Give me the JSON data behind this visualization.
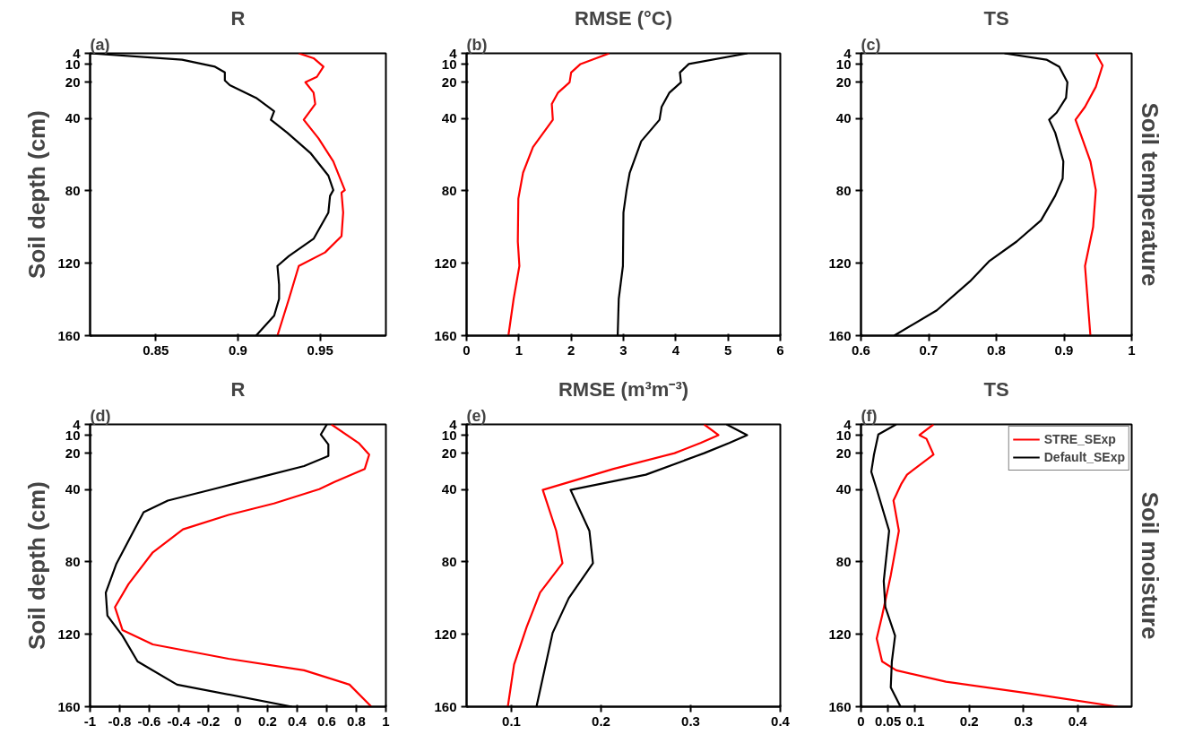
{
  "chart_data": [
    {
      "type": "line",
      "title": "R",
      "annotations": [
        "(a)"
      ],
      "ylabel": "Soil depth (cm)",
      "xlim": [
        0.81,
        0.99
      ],
      "xticks": [
        0.85,
        0.9,
        0.95
      ],
      "ylim": [
        160,
        4
      ],
      "yticks": [
        4,
        10,
        20,
        40,
        80,
        120,
        160
      ],
      "series": [
        {
          "color": "#ff0000",
          "x": [
            0.937,
            0.946,
            0.952,
            0.948,
            0.941,
            0.946,
            0.947,
            0.94,
            0.949,
            0.958,
            0.965,
            0.963,
            0.964,
            0.963,
            0.953,
            0.937,
            0.931,
            0.924
          ],
          "values": [
            4,
            6.7,
            11.4,
            17,
            20,
            25.7,
            32,
            40.7,
            51,
            63.7,
            79.6,
            81,
            92,
            105,
            114,
            121.5,
            139.7,
            160
          ]
        },
        {
          "color": "#000000",
          "x": [
            0.81,
            0.866,
            0.886,
            0.892,
            0.892,
            0.895,
            0.911,
            0.922,
            0.92,
            0.93,
            0.944,
            0.955,
            0.958,
            0.956,
            0.955,
            0.946,
            0.931,
            0.924,
            0.925,
            0.925,
            0.922,
            0.911
          ],
          "values": [
            4,
            7.5,
            11.4,
            14.5,
            19,
            21.6,
            28.6,
            36,
            40.7,
            47.9,
            59,
            71.6,
            79.6,
            82.8,
            92,
            106.5,
            116,
            121.5,
            131.8,
            139.7,
            149,
            160
          ]
        }
      ]
    },
    {
      "type": "line",
      "title": "RMSE (°C)",
      "annotations": [
        "(b)"
      ],
      "xlim": [
        0,
        6
      ],
      "xticks": [
        0,
        1,
        2,
        3,
        4,
        5,
        6
      ],
      "ylim": [
        160,
        4
      ],
      "yticks": [
        4,
        10,
        20,
        40,
        80,
        120,
        160
      ],
      "series": [
        {
          "color": "#ff0000",
          "x": [
            2.73,
            2.18,
            2.0,
            1.97,
            1.75,
            1.63,
            1.65,
            1.27,
            1.08,
            0.99,
            0.98,
            1.01,
            0.9,
            0.8
          ],
          "values": [
            4,
            9.9,
            14.6,
            20,
            25.7,
            32,
            40.7,
            55.8,
            70,
            84.3,
            108,
            121.5,
            139.7,
            160
          ]
        },
        {
          "color": "#000000",
          "x": [
            5.37,
            4.25,
            4.08,
            4.1,
            3.88,
            3.73,
            3.69,
            3.34,
            3.12,
            3.06,
            3.0,
            2.99,
            2.91,
            2.89
          ],
          "values": [
            4,
            9.9,
            14.6,
            20,
            25.7,
            33.6,
            40.7,
            52.6,
            70,
            79.6,
            92,
            121.5,
            139.7,
            160
          ]
        }
      ]
    },
    {
      "type": "line",
      "title": "TS",
      "annotations": [
        "(c)"
      ],
      "y2label": "Soil temperature",
      "xlim": [
        0.6,
        1
      ],
      "xticks": [
        0.6,
        0.7,
        0.8,
        0.9,
        1
      ],
      "ylim": [
        160,
        4
      ],
      "yticks": [
        4,
        10,
        20,
        40,
        80,
        120,
        160
      ],
      "series": [
        {
          "color": "#ff0000",
          "x": [
            0.947,
            0.957,
            0.947,
            0.931,
            0.917,
            0.939,
            0.947,
            0.943,
            0.931,
            0.939
          ],
          "values": [
            4,
            10.7,
            22.5,
            33.6,
            40.7,
            63.7,
            79.6,
            100,
            121.5,
            160
          ]
        },
        {
          "color": "#000000",
          "x": [
            0.812,
            0.874,
            0.893,
            0.905,
            0.903,
            0.889,
            0.878,
            0.887,
            0.899,
            0.898,
            0.887,
            0.866,
            0.83,
            0.789,
            0.761,
            0.712,
            0.649
          ],
          "values": [
            4,
            7.5,
            11.4,
            20,
            28.6,
            36.8,
            40.7,
            47.9,
            63.7,
            73.2,
            82.7,
            96.3,
            108,
            119,
            130,
            146,
            160
          ]
        }
      ]
    },
    {
      "type": "line",
      "title": "R",
      "annotations": [
        "(d)"
      ],
      "ylabel": "Soil depth (cm)",
      "xlim": [
        -1,
        1
      ],
      "xticks": [
        -1,
        -0.8,
        -0.6,
        -0.4,
        -0.2,
        0,
        0.2,
        0.4,
        0.6,
        0.8,
        1
      ],
      "ylim": [
        160,
        4
      ],
      "yticks": [
        4,
        10,
        20,
        40,
        80,
        120,
        160
      ],
      "series": [
        {
          "color": "#ff0000",
          "x": [
            0.631,
            0.816,
            0.887,
            0.857,
            0.652,
            0.55,
            0.243,
            -0.064,
            -0.372,
            -0.576,
            -0.74,
            -0.832,
            -0.781,
            -0.576,
            -0.064,
            0.447,
            0.754,
            0.902
          ],
          "values": [
            4,
            14.3,
            20.7,
            28.6,
            35.8,
            39.8,
            47.7,
            54,
            62,
            74.7,
            92.2,
            105,
            117.6,
            125.6,
            133.5,
            139.9,
            147.8,
            160
          ]
        },
        {
          "color": "#000000",
          "x": [
            0.601,
            0.56,
            0.611,
            0.611,
            0.447,
            0.14,
            -0.167,
            -0.474,
            -0.638,
            -0.72,
            -0.822,
            -0.894,
            -0.883,
            -0.781,
            -0.679,
            -0.412,
            0.365
          ],
          "values": [
            4,
            9.6,
            15.1,
            21.5,
            27,
            33.4,
            39.8,
            46.1,
            52.5,
            65.2,
            81,
            97,
            109.7,
            120.8,
            135,
            147.8,
            160
          ]
        }
      ]
    },
    {
      "type": "line",
      "title": "RMSE (m³m⁻³)",
      "annotations": [
        "(e)"
      ],
      "xlim": [
        0.05,
        0.4
      ],
      "xticks": [
        0.1,
        0.2,
        0.3,
        0.4
      ],
      "ylim": [
        160,
        4
      ],
      "yticks": [
        4,
        10,
        20,
        40,
        80,
        120,
        160
      ],
      "series": [
        {
          "color": "#ff0000",
          "x": [
            0.315,
            0.331,
            0.311,
            0.282,
            0.214,
            0.135,
            0.15,
            0.157,
            0.132,
            0.117,
            0.103,
            0.096
          ],
          "values": [
            4,
            9.9,
            14.3,
            19.9,
            28.6,
            40.2,
            62.8,
            80.7,
            96.9,
            116,
            136.7,
            160
          ]
        },
        {
          "color": "#000000",
          "x": [
            0.34,
            0.363,
            0.343,
            0.315,
            0.25,
            0.166,
            0.187,
            0.191,
            0.164,
            0.146,
            0.128
          ],
          "values": [
            4,
            9.9,
            14.3,
            19.9,
            31.8,
            40.2,
            62.8,
            80.7,
            100,
            119.2,
            160
          ]
        }
      ]
    },
    {
      "type": "line",
      "title": "TS",
      "annotations": [
        "(f)"
      ],
      "y2label": "Soil moisture",
      "legend": "top right",
      "xlim": [
        0,
        0.5
      ],
      "xticks": [
        0,
        0.05,
        0.1,
        0.2,
        0.3,
        0.4
      ],
      "ylim": [
        160,
        4
      ],
      "yticks": [
        4,
        10,
        20,
        40,
        80,
        120,
        160
      ],
      "series": [
        {
          "name": "STRE_SExp",
          "color": "#ff0000",
          "x": [
            0.134,
            0.108,
            0.121,
            0.134,
            0.085,
            0.075,
            0.06,
            0.07,
            0.055,
            0.039,
            0.029,
            0.039,
            0.065,
            0.157,
            0.31,
            0.474
          ],
          "values": [
            4,
            9.9,
            12,
            20.7,
            31.8,
            36.6,
            46.1,
            62.8,
            87.4,
            109.7,
            122.4,
            135,
            139.9,
            146.2,
            152.6,
            160
          ]
        },
        {
          "name": "Default_SExp",
          "color": "#000000",
          "x": [
            0.065,
            0.032,
            0.024,
            0.019,
            0.029,
            0.052,
            0.042,
            0.045,
            0.063,
            0.057,
            0.055,
            0.073
          ],
          "values": [
            4,
            9.6,
            20.7,
            30.2,
            39.8,
            62.8,
            90.6,
            104.9,
            120.8,
            135,
            149.3,
            160
          ]
        }
      ]
    }
  ]
}
